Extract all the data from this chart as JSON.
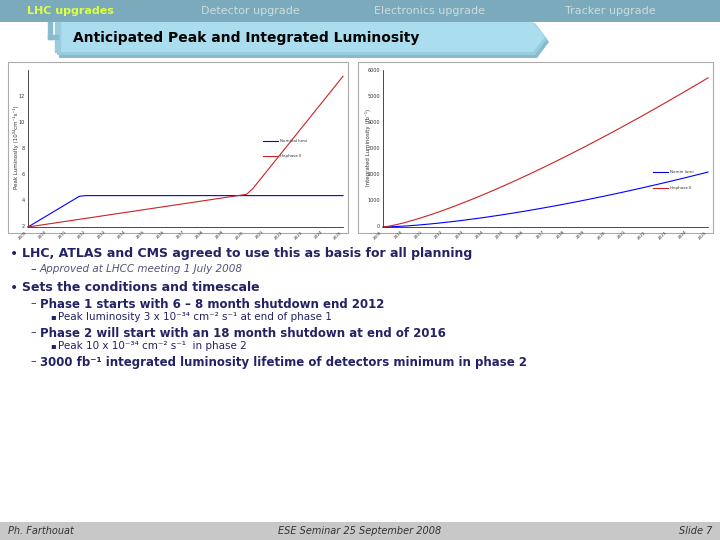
{
  "tab_labels": [
    "LHC upgrades",
    "Detector upgrade",
    "Electronics upgrade",
    "Tracker upgrade"
  ],
  "tab_bg": "#7aaabb",
  "tab_text_color": "#cceeee",
  "tab_active_text": "#ddff44",
  "tab_text_inactive": "#ccdddd",
  "header_bg_dark": "#88bbcc",
  "header_bg_mid": "#99ccdd",
  "header_bg_light": "#aaddee",
  "header_title": "Anticipated Peak and Integrated Luminosity",
  "header_title_color": "#000000",
  "slide_bg": "#ffffff",
  "bullet_color": "#222266",
  "bullet1": "LHC, ATLAS and CMS agreed to use this as basis for all planning",
  "sub1": "Approved at LHCC meeting 1 July 2008",
  "bullet2": "Sets the conditions and timescale",
  "phase1_bold": "Phase 1 starts with 6 – 8 month shutdown end 2012",
  "phase1_sub": "Peak luminosity 3 x 10⁻³⁴ cm⁻² s⁻¹ at end of phase 1",
  "phase2_bold": "Phase 2 will start with an 18 month shutdown at end of 2016",
  "phase2_sub": "Peak 10 x 10⁻³⁴ cm⁻² s⁻¹  in phase 2",
  "phase3_bold": "3000 fb⁻¹ integrated luminosity lifetime of detectors minimum in phase 2",
  "footer_left": "Ph. Farthouat",
  "footer_center": "ESE Seminar 25 September 2008",
  "footer_right": "Slide 7",
  "footer_bg": "#c8c8c8",
  "chart_bg": "#f0f0f0",
  "chart_border": "#aaaaaa"
}
